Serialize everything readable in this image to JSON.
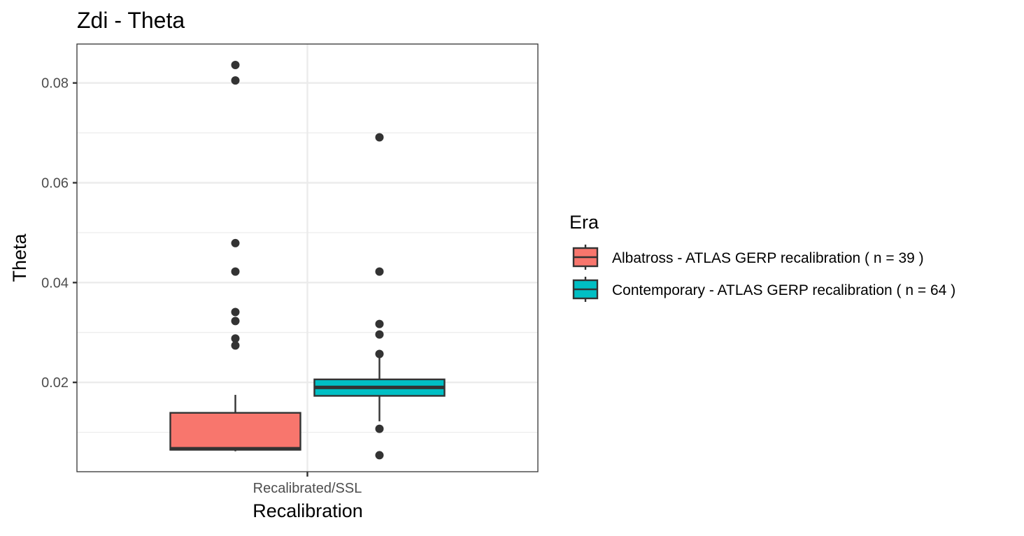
{
  "chart_data": {
    "type": "boxplot",
    "title": "Zdi - Theta",
    "xlabel": "Recalibration",
    "ylabel": "Theta",
    "categories": [
      "Recalibrated/SSL"
    ],
    "ylim": [
      0.0021,
      0.0878
    ],
    "yticks": [
      0.02,
      0.04,
      0.06,
      0.08
    ],
    "ytick_labels": [
      "0.02",
      "0.04",
      "0.06",
      "0.08"
    ],
    "grid": true,
    "legend": {
      "title": "Era",
      "placement": "right"
    },
    "series": [
      {
        "name": "Albatross - ATLAS GERP recalibration ( n = 39 )",
        "color": "#F8766D",
        "category": "Recalibrated/SSL",
        "whisker_low": 0.0062,
        "q1": 0.0065,
        "median": 0.0067,
        "q3": 0.0139,
        "whisker_high": 0.0175,
        "outliers": [
          0.0836,
          0.0805,
          0.0479,
          0.0422,
          0.0341,
          0.0323,
          0.0288,
          0.0274
        ]
      },
      {
        "name": "Contemporary - ATLAS GERP recalibration ( n = 64 )",
        "color": "#00BFC4",
        "category": "Recalibrated/SSL",
        "whisker_low": 0.0122,
        "q1": 0.0173,
        "median": 0.019,
        "q3": 0.0206,
        "whisker_high": 0.025,
        "outliers": [
          0.0691,
          0.0422,
          0.0317,
          0.0296,
          0.0257,
          0.0107,
          0.0054
        ]
      }
    ]
  }
}
